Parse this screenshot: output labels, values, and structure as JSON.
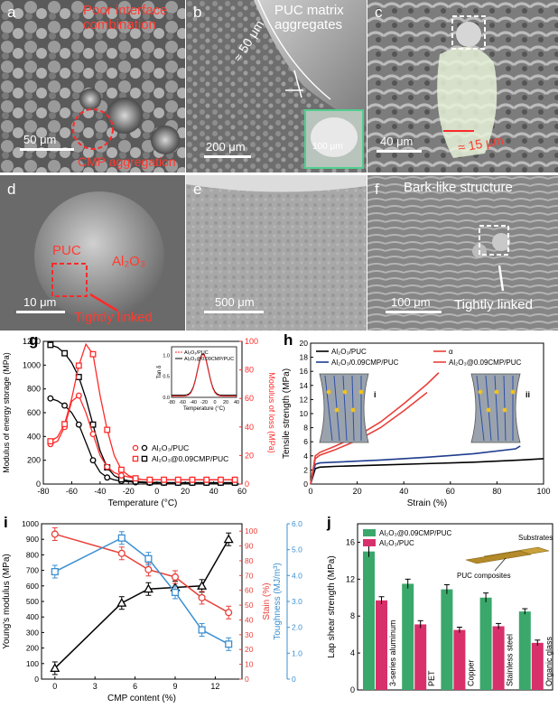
{
  "sem_panels": {
    "a": {
      "label": "a",
      "ann_top": "Poor interface combination",
      "ann_bottom": "CMP aggregation",
      "scale": "50 μm"
    },
    "b": {
      "label": "b",
      "ann": "PUC matrix aggregates",
      "dim": "≈ 50 μm",
      "scale": "200 μm",
      "inset_scale": "100 μm"
    },
    "c": {
      "label": "c",
      "dim": "≈ 15 μm",
      "scale": "40 μm"
    },
    "d": {
      "label": "d",
      "puc": "PUC",
      "al2o3": "Al₂O₃",
      "linked": "Tightly linked",
      "scale": "10 μm"
    },
    "e": {
      "label": "e",
      "scale": "500 μm"
    },
    "f": {
      "label": "f",
      "ann": "Bark-like structure",
      "linked": "Tightly linked",
      "scale": "100 μm"
    }
  },
  "chart_data": [
    {
      "type": "line",
      "panel": "g",
      "xlabel": "Temperature (°C)",
      "ylabel": "Modulus of energy storage (MPa)",
      "ylabel_right": "Modulus of loss (MPa)",
      "xlim": [
        -80,
        60
      ],
      "ylim": [
        0,
        1200
      ],
      "ylim_right": [
        0,
        100
      ],
      "x_ticks": [
        "-80",
        "-70",
        "-60",
        "-50",
        "-40",
        "-30",
        "-20",
        "-10",
        "0",
        "10",
        "20",
        "30",
        "40",
        "50",
        "60"
      ],
      "y_ticks": [
        "0",
        "200",
        "400",
        "600",
        "800",
        "1000",
        "1200"
      ],
      "y_ticks_right": [
        "0",
        "20",
        "40",
        "60",
        "80",
        "100"
      ],
      "x": [
        -75,
        -70,
        -65,
        -60,
        -55,
        -50,
        -45,
        -40,
        -35,
        -30,
        -25,
        -20,
        -15,
        -10,
        -5,
        0,
        5,
        10,
        15,
        20,
        25,
        30,
        35,
        40,
        45,
        50,
        55
      ],
      "series": [
        {
          "name": "Al₂O₃/PUC",
          "axis": "left",
          "color": "#000000",
          "marker": "circle",
          "values": [
            720,
            700,
            660,
            600,
            500,
            350,
            200,
            100,
            55,
            35,
            25,
            20,
            15,
            12,
            10,
            10,
            10,
            10,
            10,
            10,
            10,
            10,
            10,
            10,
            10,
            10,
            10
          ]
        },
        {
          "name": "Al₂O₃@0.09CMP/PUC",
          "axis": "left",
          "color": "#000000",
          "marker": "square",
          "values": [
            1170,
            1150,
            1100,
            1020,
            900,
            720,
            500,
            280,
            140,
            70,
            40,
            28,
            22,
            18,
            15,
            14,
            13,
            12,
            12,
            12,
            12,
            12,
            12,
            12,
            12,
            12,
            12
          ]
        },
        {
          "name": "Al₂O₃/PUC",
          "axis": "right",
          "color": "#ff2a2a",
          "marker": "circle",
          "values": [
            28,
            30,
            40,
            58,
            62,
            50,
            35,
            20,
            12,
            8,
            6,
            5,
            4,
            3,
            3,
            3,
            3,
            3,
            3,
            3,
            3,
            3,
            3,
            3,
            3,
            3,
            3
          ]
        },
        {
          "name": "Al₂O₃@0.09CMP/PUC",
          "axis": "right",
          "color": "#ff2a2a",
          "marker": "square",
          "values": [
            30,
            33,
            42,
            60,
            83,
            98,
            91,
            62,
            38,
            20,
            10,
            6,
            4,
            3,
            3,
            3,
            3,
            3,
            3,
            3,
            3,
            3,
            3,
            3,
            3,
            3,
            3
          ]
        }
      ],
      "inset": {
        "ylabel": "Tan δ",
        "xlabel": "Temperature (°C)",
        "x_ticks": [
          "-80",
          "-60",
          "-40",
          "-20",
          "0",
          "20",
          "40"
        ],
        "y_ticks": [
          "0.0",
          "0.5",
          "1.0"
        ],
        "legend": [
          "Al₂O₃/PUC",
          "Al₂O₃@0.09CMP/PUC"
        ]
      }
    },
    {
      "type": "line",
      "panel": "h",
      "xlabel": "Strain (%)",
      "ylabel": "Tensile strength (MPa)",
      "xlim": [
        0,
        100
      ],
      "ylim": [
        0,
        20
      ],
      "x_ticks": [
        "0",
        "20",
        "40",
        "60",
        "80",
        "100"
      ],
      "y_ticks": [
        "0",
        "2",
        "4",
        "6",
        "8",
        "10",
        "12",
        "14",
        "16",
        "18",
        "20"
      ],
      "legend": [
        "Al₂O₃/PUC",
        "α",
        "Al₂O₃/0.09CMP/PUC",
        "Al₂O₃@0.09CMP/PUC"
      ],
      "series": [
        {
          "name": "Al₂O₃/PUC",
          "color": "#000000",
          "x": [
            0,
            2,
            4,
            10,
            30,
            50,
            70,
            90,
            100
          ],
          "values": [
            0,
            2.2,
            2.4,
            2.5,
            2.7,
            2.9,
            3.1,
            3.4,
            3.6
          ]
        },
        {
          "name": "Al₂O₃/0.09CMP/PUC",
          "color": "#1f3c8f",
          "x": [
            0,
            2,
            4,
            10,
            30,
            50,
            70,
            88,
            90
          ],
          "values": [
            0,
            2.8,
            3.0,
            3.1,
            3.4,
            3.8,
            4.3,
            5.0,
            5.4
          ]
        },
        {
          "name": "Al₂O₃@0.09CMP/PUC",
          "color": "#e8413a",
          "x": [
            0,
            2,
            4,
            10,
            20,
            30,
            40,
            50,
            55
          ],
          "values": [
            0,
            4.0,
            4.5,
            5.3,
            6.8,
            8.8,
            11.4,
            14.2,
            15.8
          ]
        },
        {
          "name": "α",
          "color": "#e8413a",
          "x": [
            0,
            2,
            4,
            10,
            20,
            30,
            40,
            50
          ],
          "values": [
            0,
            3.6,
            4.1,
            4.8,
            6.2,
            8.0,
            10.4,
            13.0
          ]
        }
      ],
      "insets": [
        "i",
        "ii"
      ]
    },
    {
      "type": "line",
      "panel": "i",
      "xlabel": "CMP content (%)",
      "ylabel": "Young's modulus (MPa)",
      "ylabel_right1": "Stain (%)",
      "ylabel_right2": "Toughness (MJ/m³)",
      "xlim": [
        -1,
        14
      ],
      "ylim": [
        0,
        1000
      ],
      "ylim_right1": [
        0,
        105
      ],
      "ylim_right2": [
        0,
        6.0
      ],
      "x_ticks": [
        "0",
        "3",
        "6",
        "9",
        "12"
      ],
      "y_ticks": [
        "0",
        "100",
        "200",
        "300",
        "400",
        "500",
        "600",
        "700",
        "800",
        "900",
        "1000"
      ],
      "y_ticks_right1": [
        "0",
        "10",
        "20",
        "30",
        "40",
        "50",
        "60",
        "70",
        "80",
        "90",
        "100"
      ],
      "y_ticks_right2": [
        "0",
        "1.0",
        "2.0",
        "3.0",
        "4.0",
        "5.0",
        "6.0"
      ],
      "x": [
        0,
        5,
        7,
        9,
        11,
        13
      ],
      "series": [
        {
          "name": "Young's modulus",
          "axis": "left",
          "color": "#000000",
          "marker": "triangle",
          "values": [
            70,
            490,
            580,
            590,
            600,
            900
          ]
        },
        {
          "name": "Stain",
          "axis": "right1",
          "color": "#e8413a",
          "marker": "circle",
          "values": [
            98,
            85,
            74,
            69,
            55,
            45
          ]
        },
        {
          "name": "Toughness",
          "axis": "right2",
          "color": "#3b8fd0",
          "marker": "square",
          "values": [
            4.15,
            5.45,
            4.65,
            3.35,
            1.9,
            1.35
          ]
        }
      ]
    },
    {
      "type": "bar",
      "panel": "j",
      "ylabel": "Lap shear strength (MPa)",
      "ylim": [
        0,
        18
      ],
      "y_ticks": [
        "0",
        "4",
        "8",
        "12",
        "16"
      ],
      "categories": [
        "3-series aluminum",
        "PET",
        "Copper",
        "Stainless steel",
        "Organic glass"
      ],
      "series": [
        {
          "name": "Al₂O₃@0.09CMP/PUC",
          "color": "#3aa86b",
          "values": [
            15.0,
            11.5,
            10.9,
            10.0,
            8.5
          ],
          "err": [
            0.6,
            0.5,
            0.5,
            0.5,
            0.3
          ]
        },
        {
          "name": "Al₂O₃/PUC",
          "color": "#d8306b",
          "values": [
            9.7,
            7.1,
            6.5,
            6.9,
            5.1
          ],
          "err": [
            0.4,
            0.4,
            0.3,
            0.3,
            0.3
          ]
        }
      ],
      "annotations": [
        "Substrates",
        "PUC composites"
      ]
    }
  ],
  "panel_labels": {
    "g": "g",
    "h": "h",
    "i": "i",
    "j": "j"
  }
}
